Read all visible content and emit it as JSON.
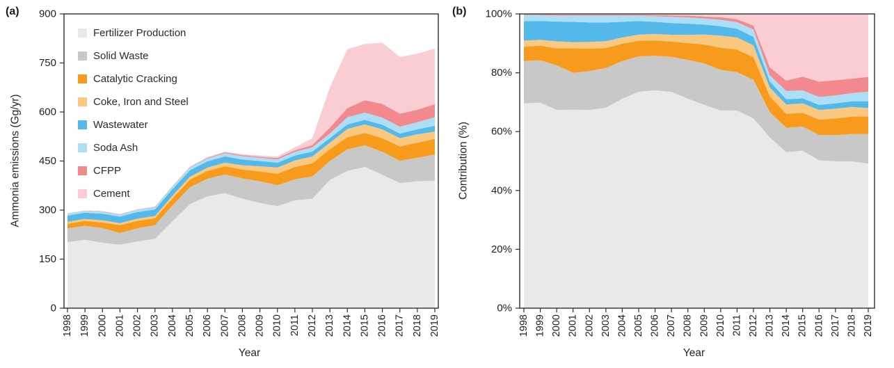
{
  "panels": {
    "a": {
      "label": "(a)",
      "y_axis_title": "Ammonia emissions (Gg/yr)",
      "x_axis_title": "Year",
      "y_tick_labels": [
        "0",
        "150",
        "300",
        "450",
        "600",
        "750",
        "900"
      ]
    },
    "b": {
      "label": "(b)",
      "y_axis_title": "Contribution (%)",
      "x_axis_title": "Year",
      "y_tick_labels": [
        "0%",
        "20%",
        "40%",
        "60%",
        "80%",
        "100%"
      ]
    }
  },
  "chart_data": [
    {
      "type": "area",
      "stacked": true,
      "title": "",
      "xlabel": "Year",
      "ylabel": "Ammonia emissions (Gg/yr)",
      "ylim": [
        0,
        900
      ],
      "grid": false,
      "legend_position": "top-left-inside",
      "x": [
        "1998",
        "1999",
        "2000",
        "2001",
        "2002",
        "2003",
        "2004",
        "2005",
        "2006",
        "2007",
        "2008",
        "2009",
        "2010",
        "2011",
        "2012",
        "2013",
        "2014",
        "2015",
        "2016",
        "2017",
        "2018",
        "2019"
      ],
      "series": [
        {
          "name": "Fertilizer Production",
          "color": "#e9e9e9",
          "values": [
            202,
            209,
            200,
            194,
            204,
            212,
            266,
            318,
            342,
            352,
            335,
            322,
            312,
            330,
            335,
            392,
            420,
            432,
            408,
            383,
            388,
            390
          ]
        },
        {
          "name": "Solid Waste",
          "color": "#c8c8c8",
          "values": [
            42,
            43,
            45,
            36,
            40,
            42,
            48,
            52,
            54,
            57,
            62,
            66,
            64,
            64,
            68,
            58,
            66,
            66,
            70,
            68,
            72,
            80
          ]
        },
        {
          "name": "Catalytic Cracking",
          "color": "#f89b1c",
          "values": [
            14,
            15,
            17,
            24,
            23,
            21,
            22,
            23,
            24,
            25,
            27,
            30,
            35,
            38,
            40,
            36,
            37,
            38,
            42,
            44,
            46,
            48
          ]
        },
        {
          "name": "Coke, Iron and Steel",
          "color": "#fac87e",
          "values": [
            6,
            6,
            7,
            6,
            7,
            7,
            8,
            9,
            10,
            11,
            13,
            16,
            19,
            20,
            21,
            20,
            25,
            26,
            27,
            25,
            26,
            22
          ]
        },
        {
          "name": "Wastewater",
          "color": "#54b9ea",
          "values": [
            19,
            19,
            20,
            20,
            20,
            20,
            20,
            20,
            19,
            19,
            18,
            16,
            15,
            15,
            15,
            14,
            14,
            14,
            14,
            14,
            15,
            18
          ]
        },
        {
          "name": "Soda Ash",
          "color": "#acdff5",
          "values": [
            6,
            6,
            6,
            6,
            7,
            7,
            8,
            8,
            9,
            10,
            10,
            10,
            10,
            11,
            13,
            14,
            22,
            22,
            22,
            21,
            22,
            26
          ]
        },
        {
          "name": "CFPP",
          "color": "#f2898e",
          "values": [
            0.5,
            0.5,
            1,
            1,
            1,
            1,
            1,
            1.5,
            2,
            2.5,
            3,
            3,
            4,
            5,
            7,
            18,
            28,
            38,
            42,
            40,
            38,
            40
          ]
        },
        {
          "name": "Cement",
          "color": "#f9cdd1",
          "values": [
            0.5,
            0.5,
            1,
            1,
            1,
            1,
            1,
            1.5,
            2,
            2.5,
            3,
            4,
            5,
            9,
            21,
            123,
            180,
            172,
            187,
            173,
            171,
            170
          ]
        }
      ]
    },
    {
      "type": "area",
      "stacked": true,
      "title": "",
      "xlabel": "Year",
      "ylabel": "Contribution (%)",
      "unit": "%",
      "ylim": [
        0,
        100
      ],
      "grid": false,
      "x": [
        "1998",
        "1999",
        "2000",
        "2001",
        "2002",
        "2003",
        "2004",
        "2005",
        "2006",
        "2007",
        "2008",
        "2009",
        "2010",
        "2011",
        "2012",
        "2013",
        "2014",
        "2015",
        "2016",
        "2017",
        "2018",
        "2019"
      ],
      "series": [
        {
          "name": "Fertilizer Production",
          "color": "#e9e9e9",
          "values": [
            69.7,
            69.9,
            67.3,
            67.4,
            67.3,
            68.2,
            71.1,
            73.4,
            74.0,
            73.5,
            71.1,
            69.0,
            67.2,
            67.1,
            64.4,
            58.1,
            53.0,
            53.5,
            50.2,
            49.9,
            49.9,
            49.1
          ]
        },
        {
          "name": "Solid Waste",
          "color": "#c8c8c8",
          "values": [
            14.5,
            14.4,
            15.2,
            12.5,
            13.2,
            13.5,
            12.8,
            12.0,
            11.7,
            11.9,
            13.2,
            14.1,
            13.8,
            13.0,
            13.1,
            8.6,
            8.3,
            8.2,
            8.6,
            8.9,
            9.3,
            10.1
          ]
        },
        {
          "name": "Catalytic Cracking",
          "color": "#f89b1c",
          "values": [
            4.8,
            5.0,
            5.7,
            8.3,
            7.6,
            6.8,
            5.9,
            5.3,
            5.2,
            5.2,
            5.7,
            6.4,
            7.5,
            7.7,
            7.7,
            5.3,
            4.7,
            4.7,
            5.2,
            5.7,
            5.9,
            6.0
          ]
        },
        {
          "name": "Coke, Iron and Steel",
          "color": "#fac87e",
          "values": [
            2.1,
            2.0,
            2.4,
            2.1,
            2.3,
            2.3,
            2.1,
            2.1,
            2.2,
            2.3,
            2.8,
            3.4,
            4.1,
            4.1,
            4.0,
            3.0,
            3.2,
            3.2,
            3.3,
            3.3,
            3.3,
            2.8
          ]
        },
        {
          "name": "Wastewater",
          "color": "#54b9ea",
          "values": [
            6.6,
            6.4,
            6.7,
            6.9,
            6.6,
            6.4,
            5.3,
            4.6,
            4.1,
            4.0,
            3.8,
            3.4,
            3.2,
            3.0,
            2.9,
            2.1,
            1.8,
            1.7,
            1.7,
            1.8,
            1.9,
            2.3
          ]
        },
        {
          "name": "Soda Ash",
          "color": "#acdff5",
          "values": [
            2.1,
            2.0,
            2.0,
            2.1,
            2.3,
            2.3,
            2.1,
            1.8,
            1.9,
            2.1,
            2.1,
            2.1,
            2.2,
            2.2,
            2.5,
            2.1,
            2.8,
            2.7,
            2.7,
            2.7,
            2.8,
            3.3
          ]
        },
        {
          "name": "CFPP",
          "color": "#f2898e",
          "values": [
            0.2,
            0.2,
            0.3,
            0.3,
            0.3,
            0.3,
            0.3,
            0.3,
            0.4,
            0.5,
            0.6,
            0.6,
            0.9,
            1.0,
            1.3,
            2.7,
            3.5,
            4.7,
            5.2,
            5.2,
            4.9,
            5.0
          ]
        },
        {
          "name": "Cement",
          "color": "#f9cdd1",
          "values": [
            0.2,
            0.2,
            0.3,
            0.3,
            0.3,
            0.3,
            0.3,
            0.3,
            0.4,
            0.5,
            0.6,
            0.9,
            1.1,
            1.8,
            4.0,
            18.2,
            22.7,
            21.3,
            23.0,
            22.5,
            22.0,
            21.4
          ]
        }
      ]
    }
  ]
}
